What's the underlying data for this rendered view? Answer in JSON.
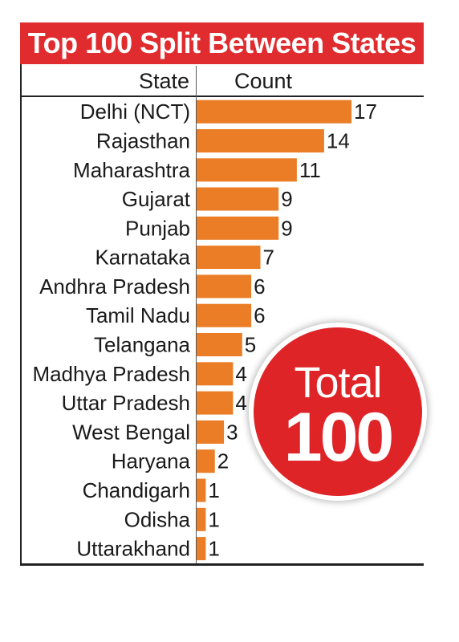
{
  "header": {
    "title": "Top 100 Split Between States",
    "state_column": "State",
    "count_column": "Count"
  },
  "badge": {
    "label": "Total",
    "value": "100"
  },
  "colors": {
    "title_bar": "#e02b2f",
    "bar": "#ea7d25",
    "badge": "#df2428"
  },
  "chart_data": {
    "type": "bar",
    "orientation": "horizontal",
    "title": "Top 100 Split Between States",
    "categories": [
      "Delhi (NCT)",
      "Rajasthan",
      "Maharashtra",
      "Gujarat",
      "Punjab",
      "Karnataka",
      "Andhra Pradesh",
      "Tamil Nadu",
      "Telangana",
      "Madhya Pradesh",
      "Uttar Pradesh",
      "West Bengal",
      "Haryana",
      "Chandigarh",
      "Odisha",
      "Uttarakhand"
    ],
    "values": [
      17,
      14,
      11,
      9,
      9,
      7,
      6,
      6,
      5,
      4,
      4,
      3,
      2,
      1,
      1,
      1
    ],
    "xlabel": "Count",
    "ylabel": "State",
    "xlim": [
      0,
      17
    ],
    "grid": false,
    "legend": "none"
  }
}
